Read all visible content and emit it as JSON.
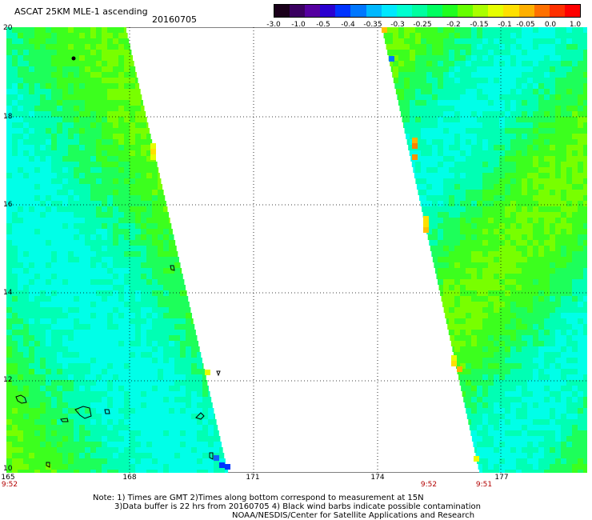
{
  "header": {
    "title": "ASCAT 25KM MLE-1 ascending",
    "date": "20160705"
  },
  "colorbar": {
    "labels": [
      "-3.0",
      "-1.0",
      "-0.5",
      "-0.4",
      "-0.35",
      "-0.3",
      "-0.25",
      "-0.2",
      "-0.15",
      "-0.1",
      "-0.05",
      "0.0",
      "1.0"
    ],
    "colors": [
      "#1a001a",
      "#3a0060",
      "#5500a0",
      "#2a00d0",
      "#0033ff",
      "#0077ff",
      "#00b8ff",
      "#00e8ff",
      "#00ffd0",
      "#00ffa0",
      "#00ff60",
      "#20ff20",
      "#66ff00",
      "#aaff00",
      "#e6ff00",
      "#ffe000",
      "#ffb000",
      "#ff7000",
      "#ff3000",
      "#ff0000"
    ]
  },
  "map": {
    "y_labels": [
      "20",
      "18",
      "16",
      "14",
      "12",
      "10"
    ],
    "x_labels": [
      "165",
      "168",
      "171",
      "174",
      "177"
    ],
    "time_labels": [
      "9:52",
      "9:52",
      "9:51"
    ]
  },
  "notes": {
    "line1": "Note: 1) Times are GMT 2)Times along bottom correspond to measurement at 15N",
    "line2": "3)Data buffer is 22 hrs from 20160705 4) Black wind barbs indicate possible contamination",
    "line3": "NOAA/NESDIS/Center for Satellite Applications and Research"
  }
}
